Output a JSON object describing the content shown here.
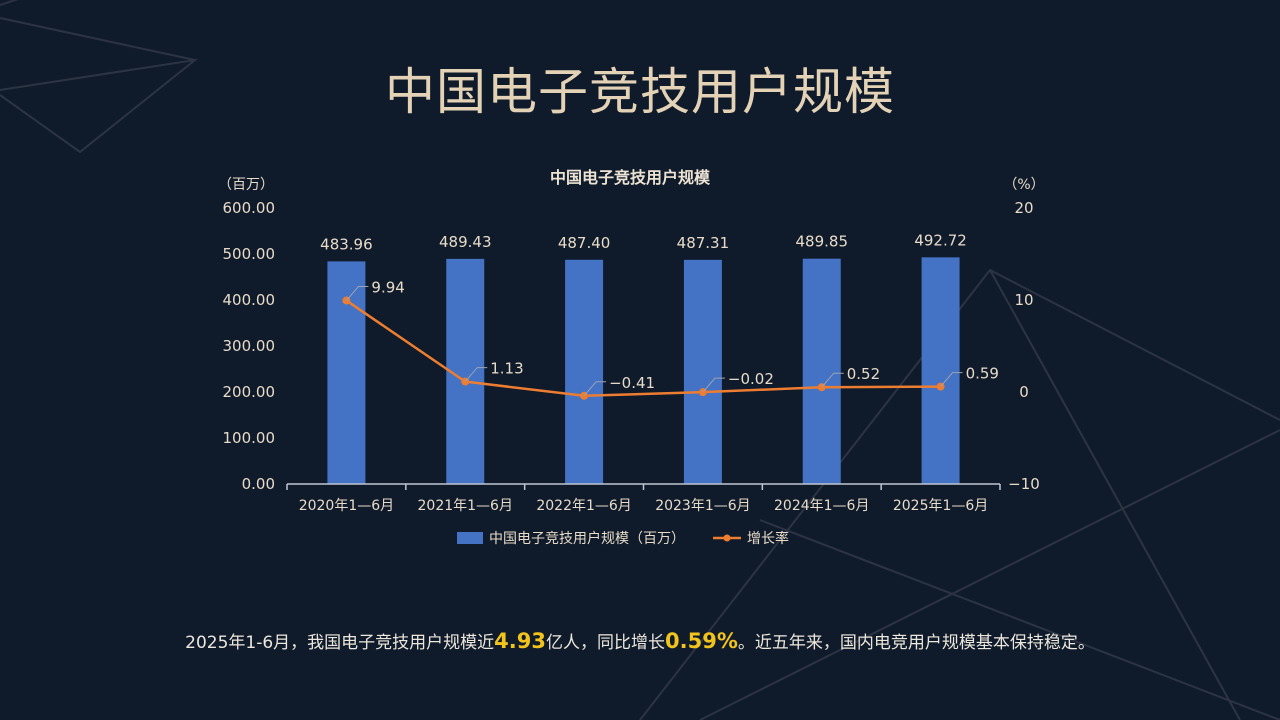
{
  "page": {
    "title": "中国电子竞技用户规模"
  },
  "footer": {
    "part1": "2025年1-6月，我国电子竞技用户规模近",
    "highlight1": "4.93",
    "part2": "亿人，同比增长",
    "highlight2": "0.59%",
    "part3": "。近五年来，国内电竞用户规模基本保持稳定。"
  },
  "colors": {
    "bar": "#4472c4",
    "line": "#ed7d31",
    "axis_text": "#e8dcc8",
    "highlight": "#f2c41b"
  },
  "chart_data": {
    "type": "bar",
    "title": "中国电子竞技用户规模",
    "categories": [
      "2020年1—6月",
      "2021年1—6月",
      "2022年1—6月",
      "2023年1—6月",
      "2024年1—6月",
      "2025年1—6月"
    ],
    "series": [
      {
        "name": "中国电子竞技用户规模（百万）",
        "type": "bar",
        "axis": "left",
        "values": [
          483.96,
          489.43,
          487.4,
          487.31,
          489.85,
          492.72
        ],
        "labels": [
          "483.96",
          "489.43",
          "487.40",
          "487.31",
          "489.85",
          "492.72"
        ]
      },
      {
        "name": "增长率",
        "type": "line",
        "axis": "right",
        "values": [
          9.94,
          1.13,
          -0.41,
          -0.02,
          0.52,
          0.59
        ],
        "labels": [
          "9.94",
          "1.13",
          "-0.41",
          "-0.02",
          "0.52",
          "0.59"
        ]
      }
    ],
    "y_left": {
      "unit_label": "（百万）",
      "ylim": [
        0,
        600
      ],
      "ticks": [
        "0.00",
        "100.00",
        "200.00",
        "300.00",
        "400.00",
        "500.00",
        "600.00"
      ]
    },
    "y_right": {
      "unit_label": "（%）",
      "ylim": [
        -10,
        20
      ],
      "ticks": [
        "-10",
        "0",
        "10",
        "20"
      ]
    },
    "grid": false,
    "legend_position": "bottom"
  }
}
